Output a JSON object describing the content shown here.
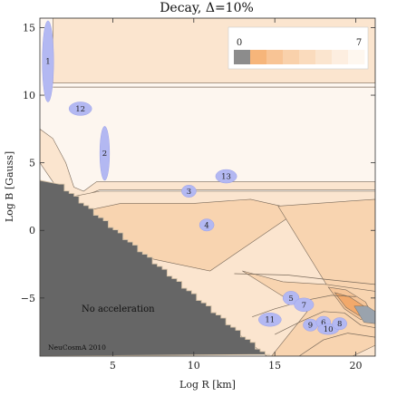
{
  "chart_data": {
    "type": "contour",
    "title": "Decay, Δ=10%",
    "xlabel": "Log R [km]",
    "ylabel": "Log B [Gauss]",
    "xlim": [
      0.5,
      21.2
    ],
    "ylim": [
      -9.3,
      15.7
    ],
    "xticks": [
      5,
      10,
      15,
      20
    ],
    "yticks": [
      -5,
      0,
      5,
      10,
      15
    ],
    "colors": {
      "excluded": "#666666",
      "background": "#fdf6ef",
      "band_light": "#fbe5cf",
      "band_mid": "#f8d4b0",
      "contour_line": "#7a6a5a",
      "marker_fill": "#b3b8f2",
      "marker_edge": "#9aa0ea"
    },
    "legend": {
      "min_label": "0",
      "max_label": "7",
      "swatches": [
        "#8c8c8c",
        "#f6b57a",
        "#f8c495",
        "#f9d1ab",
        "#fadbbd",
        "#fbe5cf",
        "#fdeee0",
        "#fef7ef"
      ]
    },
    "annotations": {
      "no_acceleration": "No acceleration",
      "credit": "NeuCosmA 2010"
    },
    "sources": [
      {
        "id": "1",
        "x": 1.0,
        "y": 12.5,
        "shape": "ellipse",
        "rx": 0.35,
        "ry": 3.0
      },
      {
        "id": "12",
        "x": 3.0,
        "y": 9.0,
        "shape": "blob",
        "rx": 0.7,
        "ry": 0.5
      },
      {
        "id": "2",
        "x": 4.5,
        "y": 5.7,
        "shape": "ellipse",
        "rx": 0.3,
        "ry": 2.0
      },
      {
        "id": "13",
        "x": 12.0,
        "y": 4.0,
        "shape": "blob",
        "rx": 0.65,
        "ry": 0.5
      },
      {
        "id": "3",
        "x": 9.7,
        "y": 2.9,
        "shape": "blob",
        "rx": 0.45,
        "ry": 0.45
      },
      {
        "id": "4",
        "x": 10.8,
        "y": 0.4,
        "shape": "blob",
        "rx": 0.45,
        "ry": 0.45
      },
      {
        "id": "5",
        "x": 16.0,
        "y": -5.0,
        "shape": "blob",
        "rx": 0.5,
        "ry": 0.5
      },
      {
        "id": "7",
        "x": 16.8,
        "y": -5.5,
        "shape": "blob",
        "rx": 0.6,
        "ry": 0.5
      },
      {
        "id": "11",
        "x": 14.7,
        "y": -6.6,
        "shape": "blob",
        "rx": 0.7,
        "ry": 0.5
      },
      {
        "id": "9",
        "x": 17.2,
        "y": -7.0,
        "shape": "blob",
        "rx": 0.45,
        "ry": 0.45
      },
      {
        "id": "6",
        "x": 18.0,
        "y": -6.8,
        "shape": "blob",
        "rx": 0.45,
        "ry": 0.45
      },
      {
        "id": "10",
        "x": 18.3,
        "y": -7.3,
        "shape": "blob",
        "rx": 0.65,
        "ry": 0.4
      },
      {
        "id": "8",
        "x": 19.0,
        "y": -6.9,
        "shape": "blob",
        "rx": 0.45,
        "ry": 0.45
      }
    ]
  }
}
